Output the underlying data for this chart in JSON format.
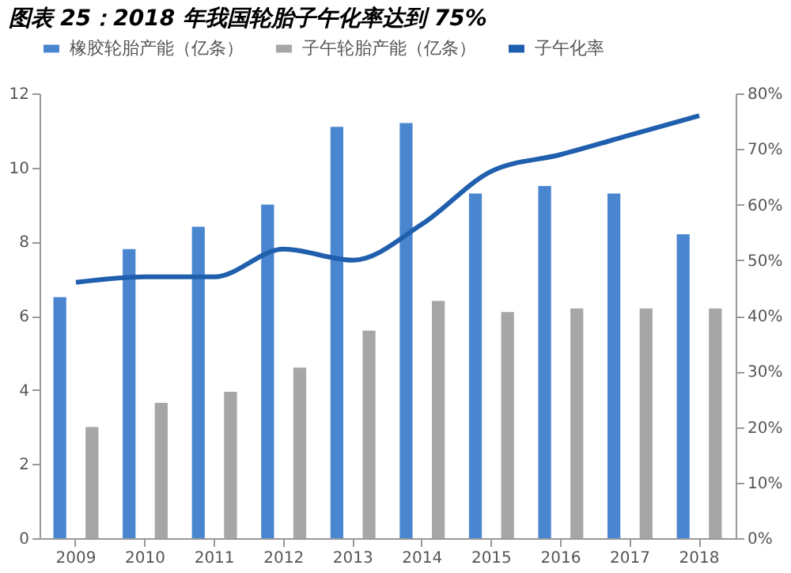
{
  "chart_data": {
    "type": "bar",
    "title": "图表 25：2018 年我国轮胎子午化率达到 75%",
    "categories": [
      "2009",
      "2010",
      "2011",
      "2012",
      "2013",
      "2014",
      "2015",
      "2016",
      "2017",
      "2018"
    ],
    "series": [
      {
        "name": "橡胶轮胎产能（亿条）",
        "color": "#4a86d0",
        "values": [
          6.5,
          7.8,
          8.4,
          9.0,
          11.1,
          11.2,
          9.3,
          9.5,
          9.3,
          8.2
        ]
      },
      {
        "name": "子午轮胎产能（亿条）",
        "color": "#a6a6a6",
        "values": [
          3.0,
          3.65,
          3.95,
          4.6,
          5.6,
          6.4,
          6.1,
          6.2,
          6.2,
          6.2
        ]
      },
      {
        "name": "子午化率",
        "type": "line",
        "axis": "y2",
        "color": "#1f5fad",
        "values": [
          46,
          47,
          47,
          52,
          50,
          56.5,
          66,
          69,
          72.5,
          76
        ]
      }
    ],
    "ylim": [
      0,
      12
    ],
    "yticks": [
      0,
      2,
      4,
      6,
      8,
      10,
      12
    ],
    "y2lim": [
      0,
      80
    ],
    "y2ticks": [
      {
        "value": 0,
        "label": "0%"
      },
      {
        "value": 10,
        "label": "10%"
      },
      {
        "value": 20,
        "label": "20%"
      },
      {
        "value": 30,
        "label": "30%"
      },
      {
        "value": 40,
        "label": "40%"
      },
      {
        "value": 50,
        "label": "50%"
      },
      {
        "value": 60,
        "label": "60%"
      },
      {
        "value": 70,
        "label": "70%"
      },
      {
        "value": 80,
        "label": "80%"
      }
    ],
    "grid": false,
    "legend": "top"
  }
}
